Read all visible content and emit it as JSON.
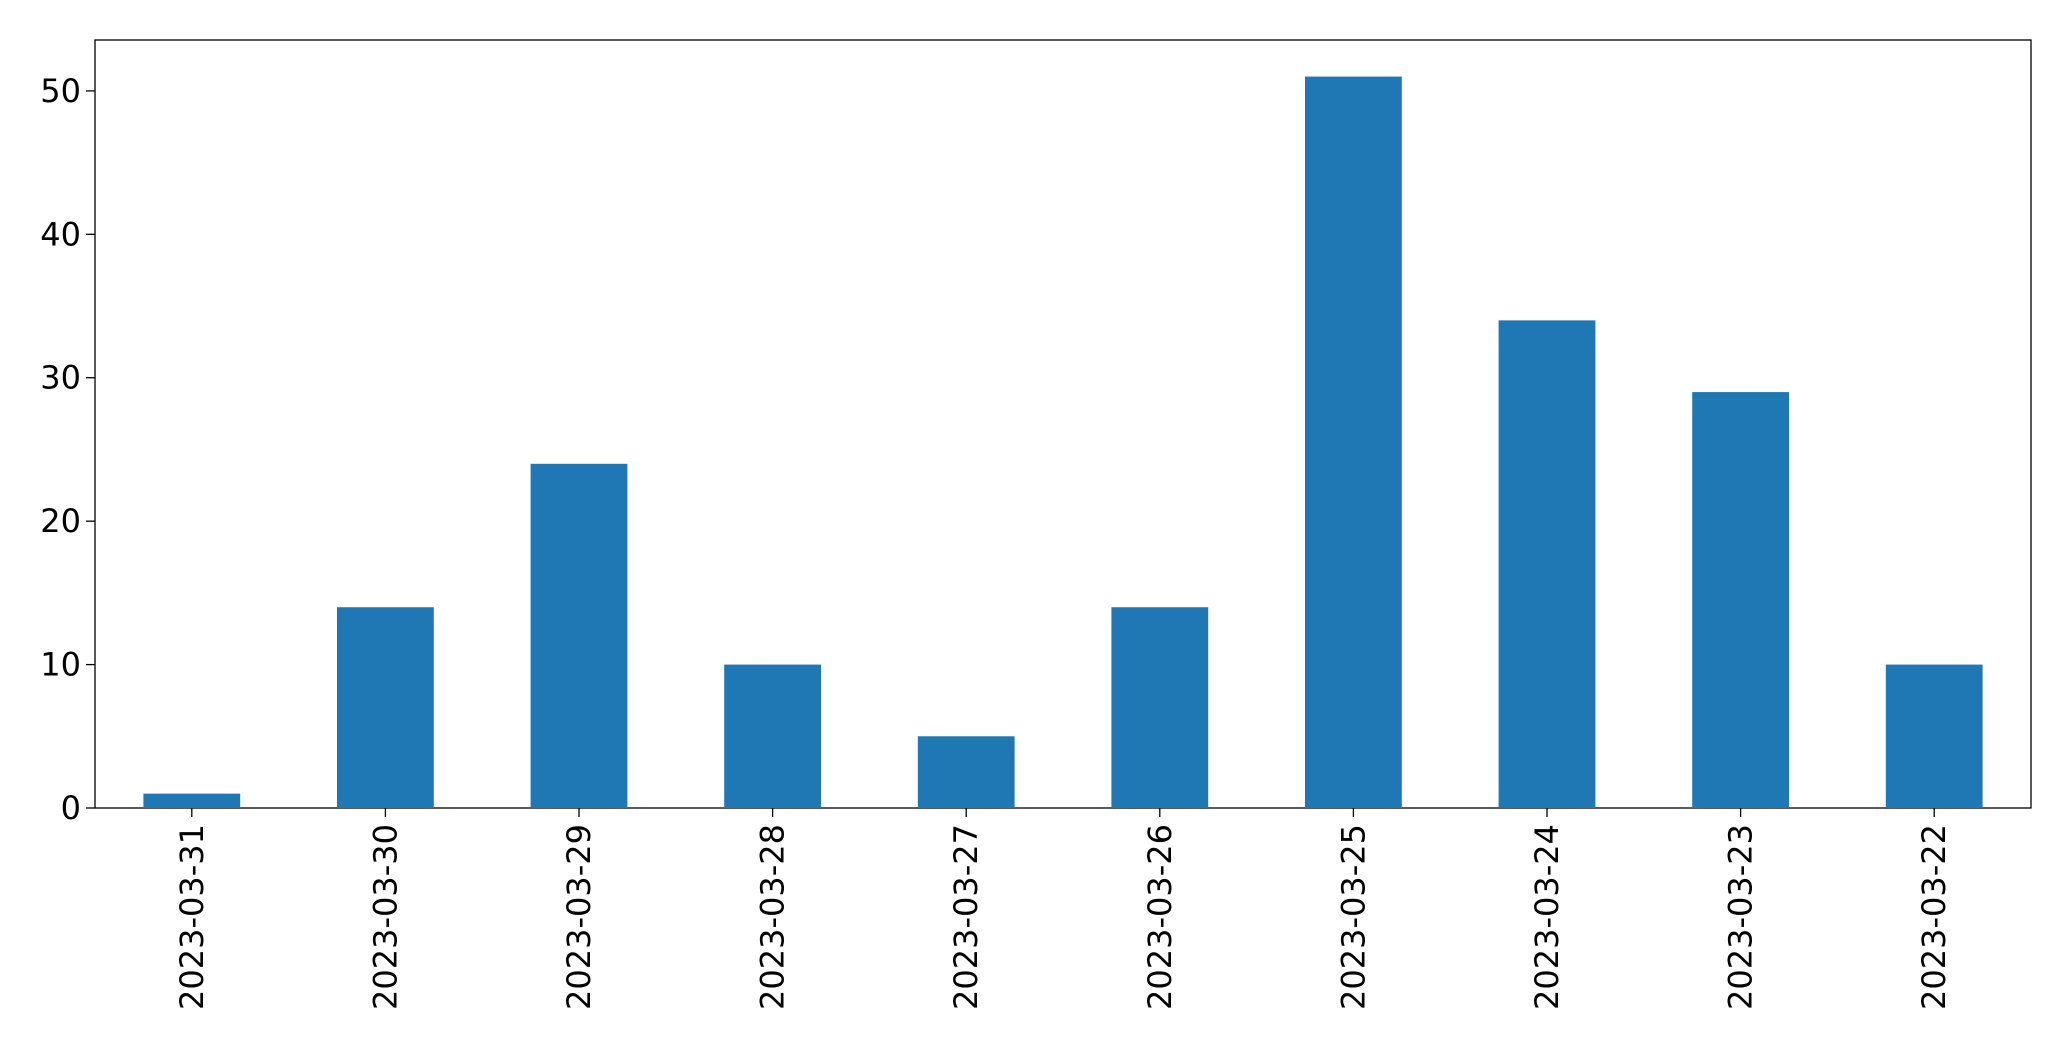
{
  "chart_data": {
    "type": "bar",
    "categories": [
      "2023-03-31",
      "2023-03-30",
      "2023-03-29",
      "2023-03-28",
      "2023-03-27",
      "2023-03-26",
      "2023-03-25",
      "2023-03-24",
      "2023-03-23",
      "2023-03-22"
    ],
    "values": [
      1,
      14,
      24,
      10,
      5,
      14,
      51,
      34,
      29,
      10
    ],
    "color": "#1f77b4",
    "ylim": [
      0,
      53.55
    ],
    "yticks": [
      0,
      10,
      20,
      30,
      40,
      50
    ],
    "grid": false
  }
}
